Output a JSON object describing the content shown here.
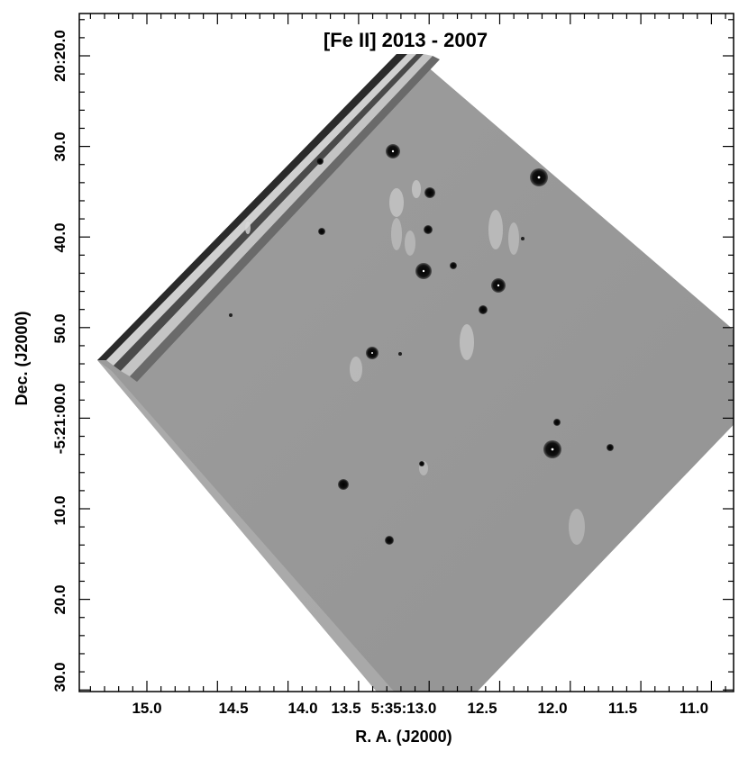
{
  "figure": {
    "title": "[Fe II]  2013 - 2007",
    "xlabel": "R. A.  (J2000)",
    "ylabel": "Dec. (J2000)",
    "x_ticks": [
      "15.0",
      "14.5",
      "14.0",
      "13.5",
      "5:35:13.0",
      "12.5",
      "12.0",
      "11.5",
      "11.0"
    ],
    "y_ticks": [
      "20:20.0",
      "30.0",
      "40.0",
      "50.0",
      "-5:21:00.0",
      "10.0",
      "20.0",
      "30.0"
    ],
    "image_description_colors": {
      "background": "#9a9a9a",
      "star": "#0a0a0a",
      "frame": "#000000"
    }
  }
}
